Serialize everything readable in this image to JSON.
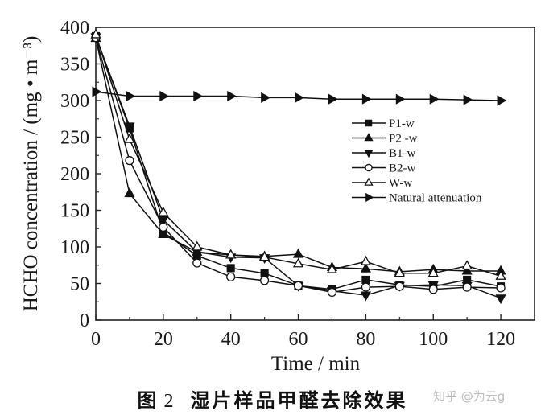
{
  "caption": {
    "figure_label": "图",
    "figure_number": "2",
    "title": "湿片样品甲醛去除效果"
  },
  "watermark": "知乎 @为云g",
  "chart_data": {
    "type": "line",
    "title": "湿片样品甲醛去除效果",
    "xlabel": "Time / min",
    "ylabel": "HCHO concentration / (mg • m⁻³)",
    "xlim": [
      0,
      130
    ],
    "ylim": [
      0,
      400
    ],
    "x_ticks": [
      0,
      20,
      40,
      60,
      80,
      100,
      120
    ],
    "y_ticks": [
      0,
      50,
      100,
      150,
      200,
      250,
      300,
      350,
      400
    ],
    "grid": false,
    "legend_position": "right-center",
    "x": [
      0,
      10,
      20,
      30,
      40,
      50,
      60,
      70,
      80,
      90,
      100,
      110,
      120
    ],
    "series": [
      {
        "name": "P1-w",
        "marker": "square-filled",
        "values": [
          388,
          262,
          120,
          88,
          71,
          64,
          47,
          42,
          55,
          48,
          46,
          55,
          46
        ]
      },
      {
        "name": "P2 -w",
        "marker": "triangle-up-filled",
        "values": [
          385,
          173,
          117,
          93,
          89,
          87,
          90,
          72,
          70,
          66,
          69,
          67,
          67
        ]
      },
      {
        "name": "B1-w",
        "marker": "triangle-down-filled",
        "values": [
          387,
          265,
          137,
          93,
          86,
          85,
          47,
          40,
          34,
          47,
          48,
          47,
          30
        ]
      },
      {
        "name": "B2-w",
        "marker": "circle-open",
        "values": [
          386,
          218,
          127,
          78,
          59,
          54,
          47,
          38,
          45,
          46,
          42,
          45,
          44
        ]
      },
      {
        "name": "W-w",
        "marker": "triangle-up-open",
        "values": [
          390,
          247,
          147,
          100,
          89,
          86,
          77,
          69,
          80,
          64,
          64,
          74,
          60
        ]
      },
      {
        "name": "Natural attenuation",
        "marker": "triangle-right-filled",
        "values": [
          312,
          306,
          306,
          306,
          306,
          304,
          304,
          302,
          302,
          302,
          302,
          301,
          300
        ]
      }
    ]
  }
}
